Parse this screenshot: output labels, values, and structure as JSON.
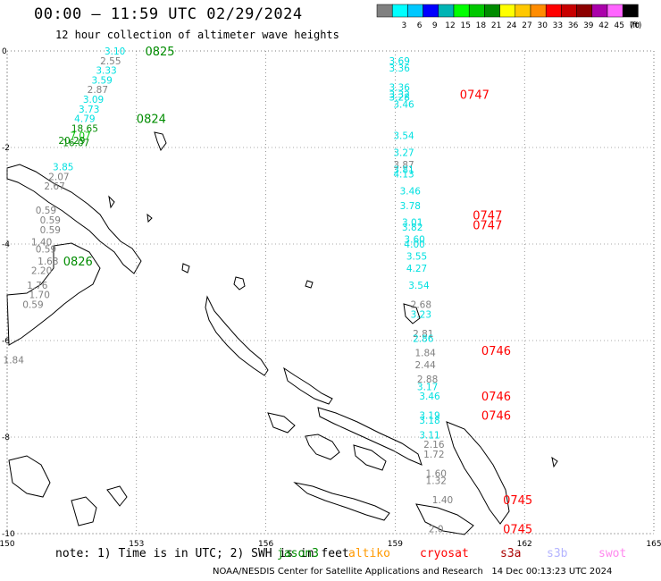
{
  "header": {
    "title": "00:00 – 11:59 UTC 02/29/2024",
    "subtitle": "12 hour collection of altimeter wave heights"
  },
  "colorbar": {
    "unit": "(ft)",
    "segments": [
      {
        "color": "#808080",
        "label": ""
      },
      {
        "color": "#00ffff",
        "label": "3"
      },
      {
        "color": "#00c8ff",
        "label": "6"
      },
      {
        "color": "#0000ff",
        "label": "9"
      },
      {
        "color": "#00b4b4",
        "label": "12"
      },
      {
        "color": "#00ff00",
        "label": "15"
      },
      {
        "color": "#00c800",
        "label": "18"
      },
      {
        "color": "#008c00",
        "label": "21"
      },
      {
        "color": "#ffff00",
        "label": "24"
      },
      {
        "color": "#ffc800",
        "label": "27"
      },
      {
        "color": "#ff8c00",
        "label": "30"
      },
      {
        "color": "#ff0000",
        "label": "33"
      },
      {
        "color": "#c80000",
        "label": "36"
      },
      {
        "color": "#8c0000",
        "label": "39"
      },
      {
        "color": "#aa00aa",
        "label": "42"
      },
      {
        "color": "#ff64ff",
        "label": "45"
      },
      {
        "color": "#000000",
        "label": "70"
      }
    ]
  },
  "chart_data": {
    "type": "scatter",
    "xlim": [
      150,
      165
    ],
    "ylim": [
      -10,
      0
    ],
    "x_ticks": [
      150,
      153,
      156,
      159,
      162,
      165
    ],
    "y_ticks": [
      0,
      -2,
      -4,
      -6,
      -8,
      -10
    ],
    "grid": true,
    "tracks": [
      {
        "name": "jason3",
        "color": "#008c00",
        "label_x": 151.3,
        "label_y": -4.35,
        "time": "0826"
      },
      {
        "name": "jason3",
        "color": "#008c00",
        "label_x": 153.2,
        "label_y": 0.0,
        "time": "0825"
      },
      {
        "name": "jason3",
        "color": "#008c00",
        "label_x": 153.0,
        "label_y": -1.4,
        "time": "0824"
      },
      {
        "name": "cryosat",
        "color": "#ff0000",
        "label_x": 160.5,
        "label_y": -0.9,
        "time": "0747"
      },
      {
        "name": "cryosat",
        "color": "#ff0000",
        "label_x": 160.8,
        "label_y": -3.4,
        "time": "0747"
      },
      {
        "name": "cryosat",
        "color": "#ff0000",
        "label_x": 160.8,
        "label_y": -3.6,
        "time": "0747"
      },
      {
        "name": "cryosat",
        "color": "#ff0000",
        "label_x": 161.0,
        "label_y": -6.2,
        "time": "0746"
      },
      {
        "name": "cryosat",
        "color": "#ff0000",
        "label_x": 161.0,
        "label_y": -7.15,
        "time": "0746"
      },
      {
        "name": "cryosat",
        "color": "#ff0000",
        "label_x": 161.0,
        "label_y": -7.55,
        "time": "0746"
      },
      {
        "name": "cryosat",
        "color": "#ff0000",
        "label_x": 161.5,
        "label_y": -9.3,
        "time": "0745"
      },
      {
        "name": "cryosat",
        "color": "#ff0000",
        "label_x": 161.5,
        "label_y": -9.9,
        "time": "0745"
      }
    ],
    "points": [
      {
        "x": 152.5,
        "y": 0.0,
        "v": "3.10",
        "c": "#00e0e0"
      },
      {
        "x": 152.4,
        "y": -0.2,
        "v": "2.55",
        "c": "#808080"
      },
      {
        "x": 152.3,
        "y": -0.4,
        "v": "3.33",
        "c": "#00e0e0"
      },
      {
        "x": 152.2,
        "y": -0.6,
        "v": "3.59",
        "c": "#00e0e0"
      },
      {
        "x": 152.1,
        "y": -0.8,
        "v": "2.87",
        "c": "#808080"
      },
      {
        "x": 152.0,
        "y": -1.0,
        "v": "3.09",
        "c": "#00e0e0"
      },
      {
        "x": 151.9,
        "y": -1.2,
        "v": "3.73",
        "c": "#00e0e0"
      },
      {
        "x": 151.8,
        "y": -1.4,
        "v": "4.79",
        "c": "#00e0e0"
      },
      {
        "x": 151.8,
        "y": -1.6,
        "v": "18.65",
        "c": "#008c00"
      },
      {
        "x": 151.7,
        "y": -1.75,
        "v": "7.07",
        "c": "#00c800"
      },
      {
        "x": 151.6,
        "y": -1.9,
        "v": "16.07",
        "c": "#008c00"
      },
      {
        "x": 151.5,
        "y": -1.85,
        "v": "20.29",
        "c": "#008c00"
      },
      {
        "x": 151.3,
        "y": -2.4,
        "v": "3.85",
        "c": "#00e0e0"
      },
      {
        "x": 151.2,
        "y": -2.6,
        "v": "2.07",
        "c": "#808080"
      },
      {
        "x": 151.1,
        "y": -2.8,
        "v": "2.67",
        "c": "#808080"
      },
      {
        "x": 150.9,
        "y": -3.3,
        "v": "0.59",
        "c": "#808080"
      },
      {
        "x": 151.0,
        "y": -3.5,
        "v": "0.59",
        "c": "#808080"
      },
      {
        "x": 151.0,
        "y": -3.7,
        "v": "0.59",
        "c": "#808080"
      },
      {
        "x": 150.8,
        "y": -3.95,
        "v": "1.40",
        "c": "#808080"
      },
      {
        "x": 150.9,
        "y": -4.1,
        "v": "0.59",
        "c": "#808080"
      },
      {
        "x": 150.95,
        "y": -4.35,
        "v": "1.63",
        "c": "#808080"
      },
      {
        "x": 150.8,
        "y": -4.55,
        "v": "2.20",
        "c": "#808080"
      },
      {
        "x": 150.7,
        "y": -4.85,
        "v": "1.76",
        "c": "#808080"
      },
      {
        "x": 150.75,
        "y": -5.05,
        "v": "1.70",
        "c": "#808080"
      },
      {
        "x": 150.6,
        "y": -5.25,
        "v": "0.59",
        "c": "#808080"
      },
      {
        "x": 150.15,
        "y": -6.4,
        "v": "1.84",
        "c": "#808080"
      },
      {
        "x": 159.1,
        "y": -0.2,
        "v": "3.69",
        "c": "#00e0e0"
      },
      {
        "x": 159.1,
        "y": -0.35,
        "v": "3.36",
        "c": "#00e0e0"
      },
      {
        "x": 159.1,
        "y": -0.75,
        "v": "3.36",
        "c": "#00e0e0"
      },
      {
        "x": 159.1,
        "y": -0.9,
        "v": "3.32",
        "c": "#00e0e0"
      },
      {
        "x": 159.1,
        "y": -0.95,
        "v": "3.28",
        "c": "#00e0e0"
      },
      {
        "x": 159.2,
        "y": -1.1,
        "v": "3.46",
        "c": "#00e0e0"
      },
      {
        "x": 159.2,
        "y": -1.75,
        "v": "3.54",
        "c": "#00e0e0"
      },
      {
        "x": 159.2,
        "y": -2.1,
        "v": "3.27",
        "c": "#00e0e0"
      },
      {
        "x": 159.2,
        "y": -2.35,
        "v": "3.87",
        "c": "#808080"
      },
      {
        "x": 159.2,
        "y": -2.45,
        "v": "3.81",
        "c": "#00e0e0"
      },
      {
        "x": 159.2,
        "y": -2.55,
        "v": "4.13",
        "c": "#00e0e0"
      },
      {
        "x": 159.35,
        "y": -2.9,
        "v": "3.46",
        "c": "#00e0e0"
      },
      {
        "x": 159.35,
        "y": -3.2,
        "v": "3.78",
        "c": "#00e0e0"
      },
      {
        "x": 159.4,
        "y": -3.55,
        "v": "3.01",
        "c": "#00e0e0"
      },
      {
        "x": 159.4,
        "y": -3.65,
        "v": "3.82",
        "c": "#00e0e0"
      },
      {
        "x": 159.45,
        "y": -3.9,
        "v": "3.60",
        "c": "#00e0e0"
      },
      {
        "x": 159.45,
        "y": -4.0,
        "v": "4.00",
        "c": "#00e0e0"
      },
      {
        "x": 159.5,
        "y": -4.25,
        "v": "3.55",
        "c": "#00e0e0"
      },
      {
        "x": 159.5,
        "y": -4.5,
        "v": "4.27",
        "c": "#00e0e0"
      },
      {
        "x": 159.55,
        "y": -4.85,
        "v": "3.54",
        "c": "#00e0e0"
      },
      {
        "x": 159.6,
        "y": -5.25,
        "v": "2.68",
        "c": "#808080"
      },
      {
        "x": 159.6,
        "y": -5.45,
        "v": "3.23",
        "c": "#00e0e0"
      },
      {
        "x": 159.65,
        "y": -5.85,
        "v": "2.81",
        "c": "#808080"
      },
      {
        "x": 159.65,
        "y": -5.95,
        "v": "2.86",
        "c": "#00e0e0"
      },
      {
        "x": 159.7,
        "y": -6.25,
        "v": "1.84",
        "c": "#808080"
      },
      {
        "x": 159.7,
        "y": -6.5,
        "v": "2.44",
        "c": "#808080"
      },
      {
        "x": 159.75,
        "y": -6.8,
        "v": "2.88",
        "c": "#808080"
      },
      {
        "x": 159.75,
        "y": -6.95,
        "v": "3.17",
        "c": "#00e0e0"
      },
      {
        "x": 159.8,
        "y": -7.15,
        "v": "3.46",
        "c": "#00e0e0"
      },
      {
        "x": 159.8,
        "y": -7.55,
        "v": "3.19",
        "c": "#00e0e0"
      },
      {
        "x": 159.8,
        "y": -7.65,
        "v": "3.18",
        "c": "#00e0e0"
      },
      {
        "x": 159.8,
        "y": -7.95,
        "v": "3.11",
        "c": "#00e0e0"
      },
      {
        "x": 159.9,
        "y": -8.15,
        "v": "2.16",
        "c": "#808080"
      },
      {
        "x": 159.9,
        "y": -8.35,
        "v": "1.72",
        "c": "#808080"
      },
      {
        "x": 159.95,
        "y": -8.75,
        "v": "1.60",
        "c": "#808080"
      },
      {
        "x": 159.95,
        "y": -8.9,
        "v": "1.32",
        "c": "#808080"
      },
      {
        "x": 160.1,
        "y": -9.3,
        "v": "1.40",
        "c": "#808080"
      },
      {
        "x": 159.95,
        "y": -9.9,
        "v": "2.0",
        "c": "#808080"
      }
    ]
  },
  "note": "note: 1) Time is in UTC; 2) SWH is in feet",
  "satellite_legend": [
    {
      "name": "jason3",
      "color": "#008c00"
    },
    {
      "name": "altiko",
      "color": "#ff9900"
    },
    {
      "name": "cryosat",
      "color": "#ff0000"
    },
    {
      "name": "s3a",
      "color": "#aa0000"
    },
    {
      "name": "s3b",
      "color": "#b4b4ff"
    },
    {
      "name": "swot",
      "color": "#ff88ee"
    }
  ],
  "footer": "NOAA/NESDIS Center for Satellite Applications and Research   14 Dec 00:13:23 UTC 2024"
}
